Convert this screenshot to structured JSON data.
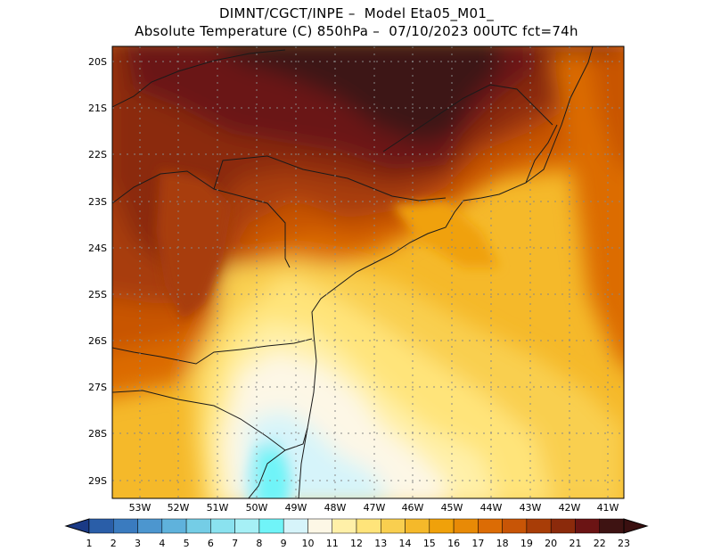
{
  "title": {
    "line1": "DIMNT/CGCT/INPE –  Model Eta05_M01_",
    "line2": "Absolute Temperature (C) 850hPa –  07/10/2023 00UTC fct=74h"
  },
  "map": {
    "lat_ticks": [
      "20S",
      "21S",
      "22S",
      "23S",
      "24S",
      "25S",
      "26S",
      "27S",
      "28S",
      "29S"
    ],
    "lon_ticks": [
      "53W",
      "52W",
      "51W",
      "50W",
      "49W",
      "48W",
      "47W",
      "46W",
      "45W",
      "44W",
      "43W",
      "42W",
      "41W"
    ],
    "lat_range": [
      -29.4,
      -19.8
    ],
    "lon_range": [
      -53.6,
      -40.5
    ]
  },
  "colorbar": {
    "labels": [
      "1",
      "2",
      "3",
      "4",
      "5",
      "6",
      "7",
      "8",
      "9",
      "10",
      "11",
      "12",
      "13",
      "14",
      "15",
      "16",
      "17",
      "18",
      "19",
      "20",
      "21",
      "22",
      "23"
    ],
    "colors": [
      "#1f3e8c",
      "#2a5ea8",
      "#3a7bbf",
      "#4c96cf",
      "#5fb2dc",
      "#74cde6",
      "#8ae2ef",
      "#a6f0f6",
      "#70f4f8",
      "#d6f4fa",
      "#fdf7e6",
      "#fff0a8",
      "#ffe47a",
      "#f9cf4f",
      "#f5b92a",
      "#f0a10a",
      "#e88a06",
      "#dc6c05",
      "#c85506",
      "#a83d07",
      "#8b2a0b",
      "#6b1414",
      "#3e1312"
    ],
    "under_color": "#1a3a86",
    "over_color": "#3a1010"
  }
}
